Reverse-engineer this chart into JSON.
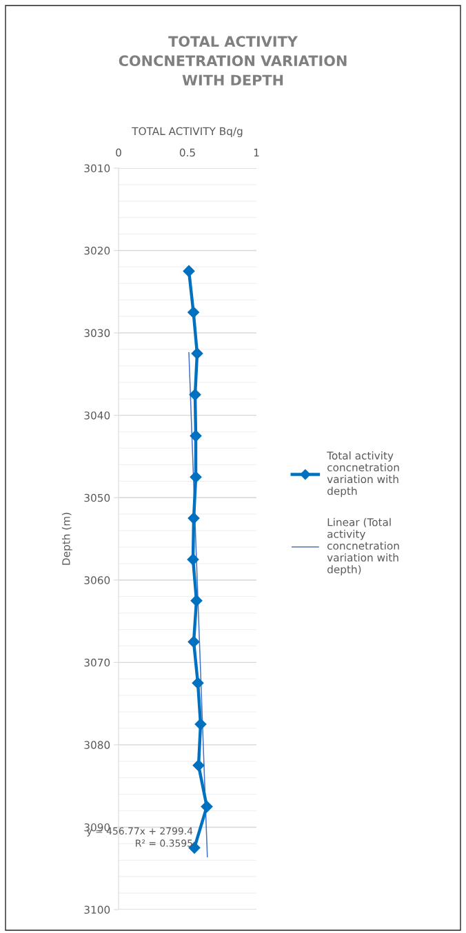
{
  "chart_data": {
    "type": "line",
    "title": "TOTAL ACTIVITY CONCNETRATION VARIATION WITH DEPTH",
    "xlabel": "TOTAL ACTIVITY Bq/g",
    "ylabel": "Depth (m)",
    "xlim": [
      0,
      1
    ],
    "xticks": [
      0,
      0.5,
      1
    ],
    "ylim": [
      3100,
      3010
    ],
    "yticks": [
      3010,
      3020,
      3030,
      3040,
      3050,
      3060,
      3070,
      3080,
      3090,
      3100
    ],
    "grid": "y",
    "legend": "right",
    "marker": "diamond",
    "line_style": "solid",
    "series": [
      {
        "name": "Total activity concnetration variation with depth",
        "color": "#0070c0",
        "x": [
          0.51,
          0.543,
          0.57,
          0.555,
          0.56,
          0.56,
          0.545,
          0.54,
          0.565,
          0.545,
          0.575,
          0.595,
          0.58,
          0.64,
          0.55
        ],
        "values": [
          3022.5,
          3027.5,
          3032.5,
          3037.5,
          3042.5,
          3047.5,
          3052.5,
          3057.5,
          3062.5,
          3067.5,
          3072.5,
          3077.5,
          3082.5,
          3087.5,
          3092.5
        ]
      },
      {
        "name": "Linear (Total activity concnetration variation with depth)",
        "color": "#4472c4",
        "marker": "none",
        "x": [
          0.51,
          0.644
        ],
        "values": [
          3032.4,
          3093.6
        ]
      }
    ],
    "annotations": [
      "y = 456.77x + 2799.4\nR² = 0.3595"
    ]
  }
}
